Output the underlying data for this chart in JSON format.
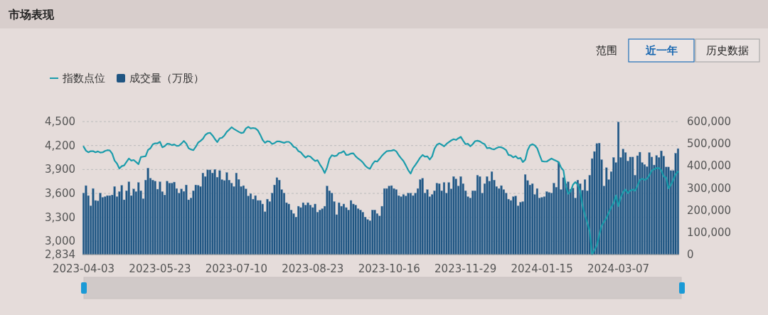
{
  "chart_data": {
    "type": "bar",
    "title": "市场表现",
    "annotations": [
      "范围",
      "近一年",
      "历史数据"
    ],
    "categories": [
      "2023-04-03",
      null,
      null,
      null,
      null,
      null,
      null,
      null,
      null,
      null,
      null,
      null,
      null,
      null,
      null,
      null,
      null,
      null,
      null,
      null,
      null,
      null,
      null,
      null,
      null,
      null,
      null,
      null,
      null,
      null,
      null,
      null,
      "2023-05-23",
      null,
      null,
      null,
      null,
      null,
      null,
      null,
      null,
      null,
      null,
      null,
      null,
      null,
      null,
      null,
      null,
      null,
      null,
      null,
      null,
      null,
      null,
      null,
      null,
      null,
      null,
      null,
      null,
      null,
      null,
      null,
      "2023-07-10",
      null,
      null,
      null,
      null,
      null,
      null,
      null,
      null,
      null,
      null,
      null,
      null,
      null,
      null,
      null,
      null,
      null,
      null,
      null,
      null,
      null,
      null,
      null,
      null,
      null,
      null,
      null,
      null,
      null,
      null,
      null,
      "2023-08-23",
      null,
      null,
      null,
      null,
      null,
      null,
      null,
      null,
      null,
      null,
      null,
      null,
      null,
      null,
      null,
      null,
      null,
      null,
      null,
      null,
      null,
      null,
      null,
      null,
      null,
      null,
      null,
      null,
      null,
      null,
      null,
      "2023-10-16",
      null,
      null,
      null,
      null,
      null,
      null,
      null,
      null,
      null,
      null,
      null,
      null,
      null,
      null,
      null,
      null,
      null,
      null,
      null,
      null,
      null,
      null,
      null,
      null,
      null,
      null,
      null,
      null,
      null,
      null,
      null,
      "2023-11-29",
      null,
      null,
      null,
      null,
      null,
      null,
      null,
      null,
      null,
      null,
      null,
      null,
      null,
      null,
      null,
      null,
      null,
      null,
      null,
      null,
      null,
      null,
      null,
      null,
      null,
      null,
      null,
      null,
      null,
      null,
      null,
      "2024-01-15",
      null,
      null,
      null,
      null,
      null,
      null,
      null,
      null,
      null,
      null,
      null,
      null,
      null,
      null,
      null,
      null,
      null,
      null,
      null,
      null,
      null,
      null,
      null,
      null,
      null,
      null,
      null,
      null,
      null,
      null,
      null,
      "2024-03-07",
      null,
      null,
      null,
      null,
      null,
      null,
      null,
      null,
      null,
      null,
      null,
      null,
      null,
      null,
      null,
      null,
      null,
      null,
      null,
      null,
      null,
      null,
      null,
      null,
      null
    ],
    "series": [
      {
        "name": "指数点位",
        "type": "line",
        "color": "#1b9cab",
        "values": [
          4187,
          4136,
          4115,
          4130,
          4130,
          4115,
          4127,
          4112,
          4115,
          4133,
          4142,
          4139,
          4097,
          4011,
          3975,
          3912,
          3942,
          3951,
          3996,
          4037,
          4011,
          4019,
          3993,
          3966,
          4055,
          4061,
          4067,
          4145,
          4166,
          4214,
          4228,
          4228,
          4246,
          4178,
          4193,
          4222,
          4220,
          4205,
          4214,
          4196,
          4199,
          4225,
          4258,
          4225,
          4166,
          4151,
          4142,
          4184,
          4237,
          4258,
          4285,
          4333,
          4354,
          4360,
          4327,
          4282,
          4243,
          4291,
          4297,
          4327,
          4372,
          4399,
          4429,
          4408,
          4390,
          4372,
          4357,
          4363,
          4414,
          4435,
          4414,
          4420,
          4414,
          4390,
          4336,
          4270,
          4234,
          4255,
          4249,
          4220,
          4231,
          4252,
          4252,
          4243,
          4234,
          4246,
          4246,
          4222,
          4184,
          4172,
          4130,
          4115,
          4079,
          4049,
          4070,
          4061,
          4031,
          4007,
          4016,
          3963,
          3918,
          3855,
          3927,
          4034,
          4079,
          4067,
          4073,
          4106,
          4112,
          4130,
          4082,
          4085,
          4100,
          4103,
          4064,
          4037,
          4016,
          3987,
          3948,
          3921,
          3909,
          3966,
          4005,
          3999,
          4034,
          4073,
          4103,
          4130,
          4133,
          4136,
          4145,
          4127,
          4079,
          4040,
          4005,
          3951,
          3891,
          3849,
          3918,
          3957,
          4002,
          4049,
          4082,
          4061,
          4064,
          4025,
          4064,
          4160,
          4211,
          4225,
          4211,
          4190,
          4220,
          4243,
          4264,
          4279,
          4270,
          4291,
          4309,
          4261,
          4217,
          4222,
          4190,
          4217,
          4255,
          4261,
          4252,
          4231,
          4217,
          4166,
          4172,
          4157,
          4151,
          4169,
          4181,
          4178,
          4163,
          4142,
          4082,
          4076,
          4052,
          4067,
          4037,
          4046,
          3993,
          4022,
          4142,
          4202,
          4217,
          4202,
          4166,
          4082,
          4005,
          3999,
          3999,
          4019,
          4037,
          4022,
          4007,
          3993,
          3924,
          3888,
          3694,
          3595,
          3625,
          3709,
          3742,
          3709,
          3634,
          3446,
          3330,
          3231,
          3127,
          2834,
          2894,
          2948,
          3082,
          3192,
          3246,
          3291,
          3360,
          3425,
          3479,
          3575,
          3440,
          3545,
          3619,
          3649,
          3604,
          3634,
          3649,
          3634,
          3694,
          3769,
          3784,
          3769,
          3784,
          3828,
          3888,
          3903,
          3918,
          3918,
          3888,
          3813,
          3799,
          3664,
          3709,
          3769,
          3843,
          3873
        ]
      },
      {
        "name": "成交量（万股）",
        "axis": "y2",
        "color": "#1f5582",
        "values": [
          277000,
          311000,
          266000,
          220000,
          298000,
          244000,
          242000,
          277000,
          258000,
          261000,
          266000,
          266000,
          269000,
          307000,
          261000,
          284000,
          312000,
          247000,
          288000,
          328000,
          266000,
          296000,
          284000,
          325000,
          288000,
          252000,
          336000,
          390000,
          344000,
          336000,
          331000,
          295000,
          328000,
          284000,
          269000,
          331000,
          322000,
          322000,
          327000,
          298000,
          277000,
          296000,
          285000,
          314000,
          247000,
          255000,
          288000,
          314000,
          312000,
          307000,
          368000,
          352000,
          382000,
          382000,
          368000,
          384000,
          349000,
          379000,
          338000,
          334000,
          370000,
          336000,
          322000,
          307000,
          368000,
          339000,
          307000,
          311000,
          296000,
          264000,
          275000,
          250000,
          266000,
          244000,
          244000,
          228000,
          193000,
          250000,
          239000,
          277000,
          314000,
          347000,
          336000,
          293000,
          277000,
          234000,
          228000,
          201000,
          185000,
          169000,
          218000,
          212000,
          234000,
          223000,
          234000,
          223000,
          212000,
          228000,
          191000,
          201000,
          207000,
          218000,
          309000,
          288000,
          277000,
          239000,
          180000,
          234000,
          218000,
          228000,
          212000,
          201000,
          244000,
          228000,
          223000,
          207000,
          201000,
          191000,
          169000,
          158000,
          153000,
          201000,
          201000,
          185000,
          174000,
          218000,
          298000,
          298000,
          309000,
          311000,
          298000,
          293000,
          266000,
          261000,
          271000,
          264000,
          277000,
          277000,
          266000,
          277000,
          298000,
          338000,
          344000,
          277000,
          293000,
          261000,
          271000,
          288000,
          322000,
          320000,
          288000,
          325000,
          277000,
          325000,
          296000,
          352000,
          341000,
          309000,
          352000,
          320000,
          288000,
          261000,
          255000,
          288000,
          288000,
          358000,
          352000,
          277000,
          320000,
          352000,
          331000,
          374000,
          336000,
          307000,
          298000,
          311000,
          293000,
          277000,
          250000,
          244000,
          261000,
          264000,
          220000,
          236000,
          239000,
          361000,
          334000,
          314000,
          320000,
          271000,
          298000,
          255000,
          258000,
          261000,
          284000,
          280000,
          277000,
          322000,
          304000,
          417000,
          293000,
          347000,
          320000,
          328000,
          295000,
          300000,
          255000,
          336000,
          320000,
          290000,
          338000,
          288000,
          358000,
          433000,
          465000,
          501000,
          503000,
          428000,
          309000,
          392000,
          338000,
          374000,
          438000,
          415000,
          598000,
          438000,
          476000,
          460000,
          422000,
          440000,
          440000,
          358000,
          446000,
          462000,
          415000,
          406000,
          397000,
          460000,
          440000,
          404000,
          447000,
          438000,
          468000,
          444000,
          395000,
          395000,
          379000,
          379000,
          457000,
          478000
        ]
      }
    ],
    "ylim": [
      2834,
      4500
    ],
    "yticks": [
      {
        "value": 2834,
        "label": "2,834"
      },
      {
        "value": 3000,
        "label": "3,000"
      },
      {
        "value": 3300,
        "label": "3,300"
      },
      {
        "value": 3600,
        "label": "3,600"
      },
      {
        "value": 3900,
        "label": "3,900"
      },
      {
        "value": 4200,
        "label": "4,200"
      },
      {
        "value": 4500,
        "label": "4,500"
      }
    ],
    "y2lim": [
      0,
      600000
    ],
    "y2ticks": [
      0,
      {
        "value": 100000,
        "label": "100,000"
      },
      {
        "value": 200000,
        "label": "200,000"
      },
      {
        "value": 300000,
        "label": "300,000"
      },
      {
        "value": 400000,
        "label": "400,000"
      },
      {
        "value": 500000,
        "label": "500,000"
      },
      {
        "value": 600000,
        "label": "600,000"
      }
    ],
    "grid": "y",
    "legend": "top left"
  }
}
